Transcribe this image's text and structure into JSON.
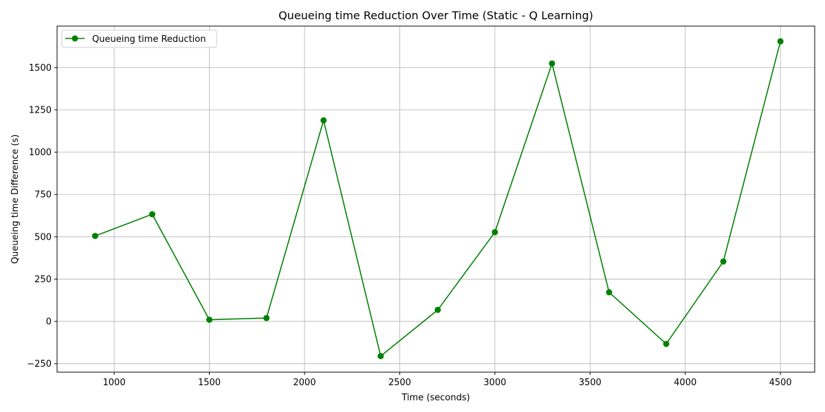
{
  "chart_data": {
    "type": "line",
    "title": "Queueing time Reduction Over Time (Static - Q Learning)",
    "xlabel": "Time (seconds)",
    "ylabel": "Queueing time Difference (s)",
    "xlim": [
      700,
      4680
    ],
    "ylim": [
      -300,
      1745
    ],
    "xticks": [
      1000,
      1500,
      2000,
      2500,
      3000,
      3500,
      4000,
      4500
    ],
    "yticks": [
      -250,
      0,
      250,
      500,
      750,
      1000,
      1250,
      1500
    ],
    "grid": true,
    "legend_position": "top-left",
    "series": [
      {
        "name": "Queueing time Reduction",
        "color": "#008000",
        "marker": "circle",
        "x": [
          900,
          1200,
          1500,
          1800,
          2100,
          2400,
          2700,
          3000,
          3300,
          3600,
          3900,
          4200,
          4500
        ],
        "y": [
          505,
          633,
          10,
          20,
          1188,
          -205,
          68,
          527,
          1524,
          172,
          -133,
          354,
          1655
        ]
      }
    ]
  }
}
